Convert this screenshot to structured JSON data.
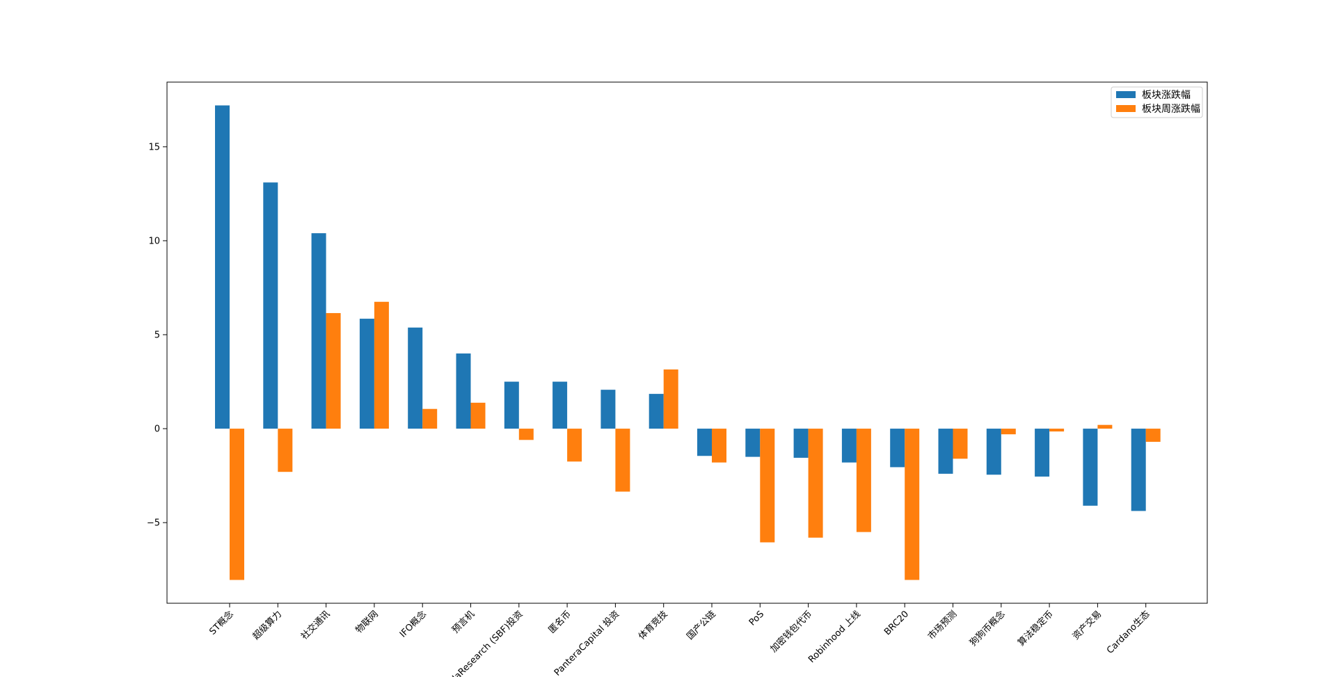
{
  "chart_data": {
    "type": "bar",
    "title": "",
    "xlabel": "",
    "ylabel": "",
    "categories": [
      "ST概念",
      "超级算力",
      "社交通讯",
      "物联网",
      "IFO概念",
      "预言机",
      "AlamedaResearch (SBF)投资",
      "匿名币",
      "PanteraCapital 投资",
      "体育竞技",
      "国产公链",
      "PoS",
      "加密钱包代币",
      "Robinhood 上线",
      "BRC20",
      "市场预测",
      "狗狗币概念",
      "算法稳定币",
      "资产交易",
      "Cardano生态"
    ],
    "series": [
      {
        "name": "板块涨跌幅",
        "color": "#1f77b4",
        "values": [
          17.2,
          13.1,
          10.4,
          5.85,
          5.38,
          4.0,
          2.5,
          2.5,
          2.07,
          1.85,
          -1.45,
          -1.5,
          -1.55,
          -1.8,
          -2.05,
          -2.4,
          -2.45,
          -2.55,
          -4.1,
          -4.38
        ]
      },
      {
        "name": "板块周涨跌幅",
        "color": "#ff7f0e",
        "values": [
          -8.05,
          -2.3,
          6.15,
          6.75,
          1.05,
          1.38,
          -0.6,
          -1.75,
          -3.35,
          3.15,
          -1.8,
          -6.05,
          -5.8,
          -5.5,
          -8.05,
          -1.6,
          -0.3,
          -0.15,
          0.2,
          -0.7
        ]
      }
    ],
    "yticks": [
      -5,
      0,
      5,
      10,
      15
    ],
    "ylim": [
      -9.29,
      18.44
    ],
    "grid": false,
    "legend_position": "top-right"
  }
}
